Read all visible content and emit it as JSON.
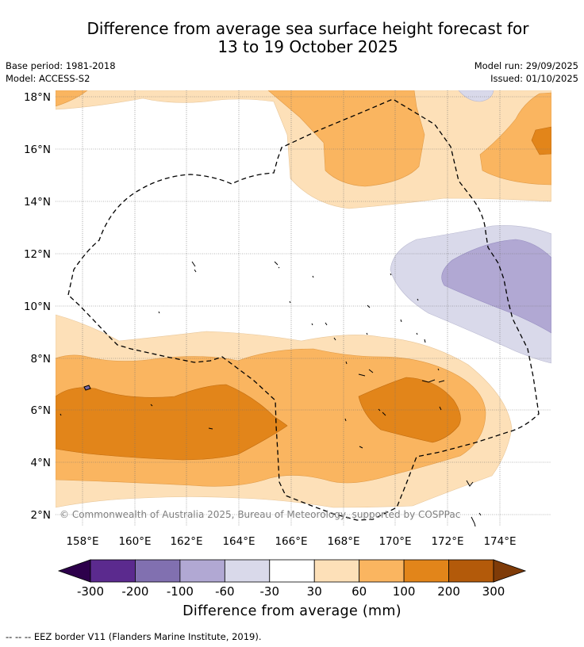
{
  "title_line1": "Difference from average sea surface height forecast for",
  "title_line2": "13 to 19 October 2025",
  "meta": {
    "base_period": "Base period: 1981-2018",
    "model": "Model: ACCESS-S2",
    "model_run": "Model run: 29/09/2025",
    "issued": "Issued: 01/10/2025"
  },
  "map": {
    "lat_labels": [
      "18°N",
      "16°N",
      "14°N",
      "12°N",
      "10°N",
      "8°N",
      "6°N",
      "4°N",
      "2°N"
    ],
    "lon_labels": [
      "158°E",
      "160°E",
      "162°E",
      "164°E",
      "166°E",
      "168°E",
      "170°E",
      "172°E",
      "174°E"
    ],
    "copyright": "© Commonwealth of Australia 2025, Bureau of Meteorology, supported by COSPPac",
    "eez_color": "#000000"
  },
  "colorbar": {
    "title": "Difference from average (mm)",
    "tick_labels": [
      "-300",
      "-200",
      "-100",
      "-60",
      "-30",
      "30",
      "60",
      "100",
      "200",
      "300"
    ],
    "colors": [
      "#5b2a8e",
      "#8170b0",
      "#b1a8d3",
      "#d9d9ea",
      "#ffffff",
      "#fde0b8",
      "#fab560",
      "#e2851a",
      "#b35a0a"
    ],
    "low_extend_color": "#2d004b",
    "high_extend_color": "#7f3b08"
  },
  "footnote": "--  --  -- EEZ border V11 (Flanders Marine Institute, 2019)."
}
